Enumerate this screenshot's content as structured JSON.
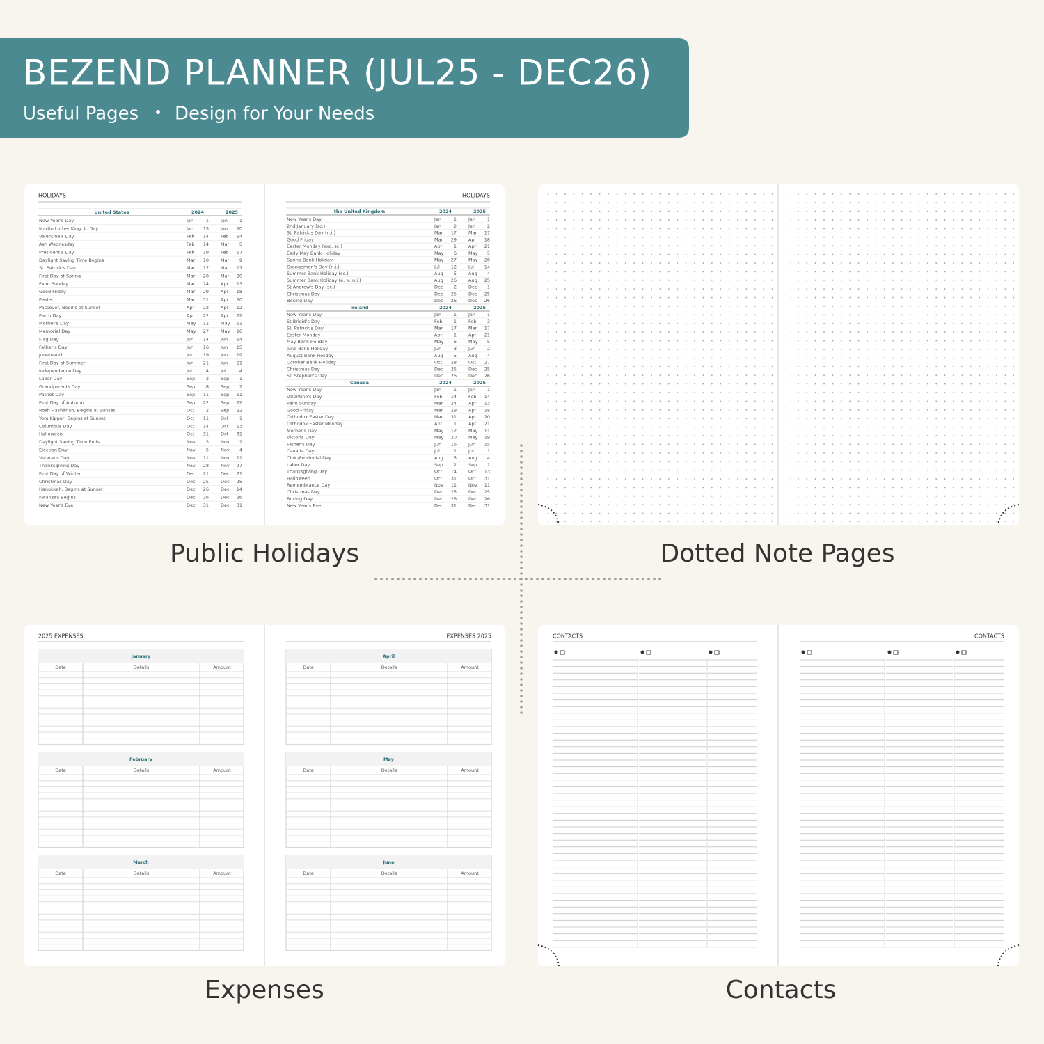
{
  "banner": {
    "title": "BEZEND PLANNER (JUL25 - DEC26)",
    "subtitle": [
      "Useful Pages",
      "Design for Your Needs"
    ]
  },
  "holidays": {
    "page_title": "HOLIDAYS",
    "year_headers": [
      2024,
      2025
    ],
    "sections": [
      {
        "country": "United States",
        "rows": [
          [
            "New Year's Day",
            "Jan",
            1,
            "Jan",
            1
          ],
          [
            "Martin Luther King, Jr. Day",
            "Jan",
            15,
            "Jan",
            20
          ],
          [
            "Valentine's Day",
            "Feb",
            14,
            "Feb",
            14
          ],
          [
            "Ash Wednesday",
            "Feb",
            14,
            "Mar",
            5
          ],
          [
            "President's Day",
            "Feb",
            19,
            "Feb",
            17
          ],
          [
            "Daylight Saving Time Begins",
            "Mar",
            10,
            "Mar",
            9
          ],
          [
            "St. Patrick's Day",
            "Mar",
            17,
            "Mar",
            17
          ],
          [
            "First Day of Spring",
            "Mar",
            20,
            "Mar",
            20
          ],
          [
            "Palm Sunday",
            "Mar",
            24,
            "Apr",
            13
          ],
          [
            "Good Friday",
            "Mar",
            29,
            "Apr",
            18
          ],
          [
            "Easter",
            "Mar",
            31,
            "Apr",
            20
          ],
          [
            "Passover, Begins at Sunset",
            "Apr",
            22,
            "Apr",
            12
          ],
          [
            "Earth Day",
            "Apr",
            22,
            "Apr",
            22
          ],
          [
            "Mother's Day",
            "May",
            12,
            "May",
            11
          ],
          [
            "Memorial Day",
            "May",
            27,
            "May",
            26
          ],
          [
            "Flag Day",
            "Jun",
            14,
            "Jun",
            14
          ],
          [
            "Father's Day",
            "Jun",
            16,
            "Jun",
            15
          ],
          [
            "Juneteenth",
            "Jun",
            19,
            "Jun",
            19
          ],
          [
            "First Day of Summer",
            "Jun",
            21,
            "Jun",
            21
          ],
          [
            "Independence Day",
            "Jul",
            4,
            "Jul",
            4
          ],
          [
            "Labor Day",
            "Sep",
            2,
            "Sep",
            1
          ],
          [
            "Grandparents Day",
            "Sep",
            8,
            "Sep",
            7
          ],
          [
            "Patriot Day",
            "Sep",
            11,
            "Sep",
            11
          ],
          [
            "First Day of Autumn",
            "Sep",
            22,
            "Sep",
            22
          ],
          [
            "Rosh Hashanah, Begins at Sunset",
            "Oct",
            2,
            "Sep",
            22
          ],
          [
            "Yom Kippur, Begins at Sunset",
            "Oct",
            11,
            "Oct",
            1
          ],
          [
            "Columbus Day",
            "Oct",
            14,
            "Oct",
            13
          ],
          [
            "Halloween",
            "Oct",
            31,
            "Oct",
            31
          ],
          [
            "Daylight Saving Time Ends",
            "Nov",
            3,
            "Nov",
            2
          ],
          [
            "Election Day",
            "Nov",
            5,
            "Nov",
            4
          ],
          [
            "Veterans Day",
            "Nov",
            11,
            "Nov",
            11
          ],
          [
            "Thanksgiving Day",
            "Nov",
            28,
            "Nov",
            27
          ],
          [
            "First Day of Winter",
            "Dec",
            21,
            "Dec",
            21
          ],
          [
            "Christmas Day",
            "Dec",
            25,
            "Dec",
            25
          ],
          [
            "Hanukkah, Begins at Sunset",
            "Dec",
            26,
            "Dec",
            14
          ],
          [
            "Kwanzaa Begins",
            "Dec",
            26,
            "Dec",
            26
          ],
          [
            "New Year's Eve",
            "Dec",
            31,
            "Dec",
            31
          ]
        ]
      },
      {
        "country": "the United Kingdom",
        "rows": [
          [
            "New Year's Day",
            "Jan",
            1,
            "Jan",
            1
          ],
          [
            "2nd January (sc.)",
            "Jan",
            2,
            "Jan",
            2
          ],
          [
            "St. Patrick's Day (n.i.)",
            "Mar",
            17,
            "Mar",
            17
          ],
          [
            "Good Friday",
            "Mar",
            29,
            "Apr",
            18
          ],
          [
            "Easter Monday (exc. sc.)",
            "Apr",
            1,
            "Apr",
            21
          ],
          [
            "Early May Bank Holiday",
            "May",
            6,
            "May",
            5
          ],
          [
            "Spring Bank Holiday",
            "May",
            27,
            "May",
            26
          ],
          [
            "Orangemen's Day (n.i.)",
            "Jul",
            12,
            "Jul",
            14
          ],
          [
            "Summer Bank Holiday (sc.)",
            "Aug",
            5,
            "Aug",
            4
          ],
          [
            "Summer Bank Holiday (e. w. n.i.)",
            "Aug",
            26,
            "Aug",
            25
          ],
          [
            "St Andrew's Day (sc.)",
            "Dec",
            2,
            "Dec",
            1
          ],
          [
            "Christmas Day",
            "Dec",
            25,
            "Dec",
            25
          ],
          [
            "Boxing Day",
            "Dec",
            26,
            "Dec",
            26
          ]
        ]
      },
      {
        "country": "Ireland",
        "rows": [
          [
            "New Year's Day",
            "Jan",
            1,
            "Jan",
            1
          ],
          [
            "St Brigid's Day",
            "Feb",
            1,
            "Feb",
            3
          ],
          [
            "St. Patrick's Day",
            "Mar",
            17,
            "Mar",
            17
          ],
          [
            "Easter Monday",
            "Apr",
            1,
            "Apr",
            21
          ],
          [
            "May Bank Holiday",
            "May",
            6,
            "May",
            5
          ],
          [
            "June Bank Holiday",
            "Jun",
            3,
            "Jun",
            2
          ],
          [
            "August Bank Holiday",
            "Aug",
            5,
            "Aug",
            4
          ],
          [
            "October Bank Holiday",
            "Oct",
            28,
            "Oct",
            27
          ],
          [
            "Christmas Day",
            "Dec",
            25,
            "Dec",
            25
          ],
          [
            "St. Stephen's Day",
            "Dec",
            26,
            "Dec",
            26
          ]
        ]
      },
      {
        "country": "Canada",
        "rows": [
          [
            "New Year's Day",
            "Jan",
            1,
            "Jan",
            1
          ],
          [
            "Valentine's Day",
            "Feb",
            14,
            "Feb",
            14
          ],
          [
            "Palm Sunday",
            "Mar",
            24,
            "Apr",
            13
          ],
          [
            "Good Friday",
            "Mar",
            29,
            "Apr",
            18
          ],
          [
            "Orthodox Easter Day",
            "Mar",
            31,
            "Apr",
            20
          ],
          [
            "Orthodox Easter Monday",
            "Apr",
            1,
            "Apr",
            21
          ],
          [
            "Mother's Day",
            "May",
            12,
            "May",
            11
          ],
          [
            "Victoria Day",
            "May",
            20,
            "May",
            19
          ],
          [
            "Father's Day",
            "Jun",
            16,
            "Jun",
            15
          ],
          [
            "Canada Day",
            "Jul",
            1,
            "Jul",
            1
          ],
          [
            "Civic/Provincial Day",
            "Aug",
            5,
            "Aug",
            4
          ],
          [
            "Labor Day",
            "Sep",
            2,
            "Sep",
            1
          ],
          [
            "Thanksgiving Day",
            "Oct",
            14,
            "Oct",
            13
          ],
          [
            "Halloween",
            "Oct",
            31,
            "Oct",
            31
          ],
          [
            "Remembrance Day",
            "Nov",
            11,
            "Nov",
            11
          ],
          [
            "Christmas Day",
            "Dec",
            25,
            "Dec",
            25
          ],
          [
            "Boxing Day",
            "Dec",
            26,
            "Dec",
            26
          ],
          [
            "New Year's Eve",
            "Dec",
            31,
            "Dec",
            31
          ]
        ]
      }
    ]
  },
  "expenses": {
    "left_title": "2025 EXPENSES",
    "right_title": "EXPENSES 2025",
    "columns": [
      "Date",
      "Details",
      "Amount"
    ],
    "months": [
      "January",
      "February",
      "March",
      "April",
      "May",
      "June"
    ]
  },
  "contacts": {
    "title": "CONTACTS"
  },
  "captions": [
    "Public Holidays",
    "Dotted Note Pages",
    "Expenses",
    "Contacts"
  ]
}
